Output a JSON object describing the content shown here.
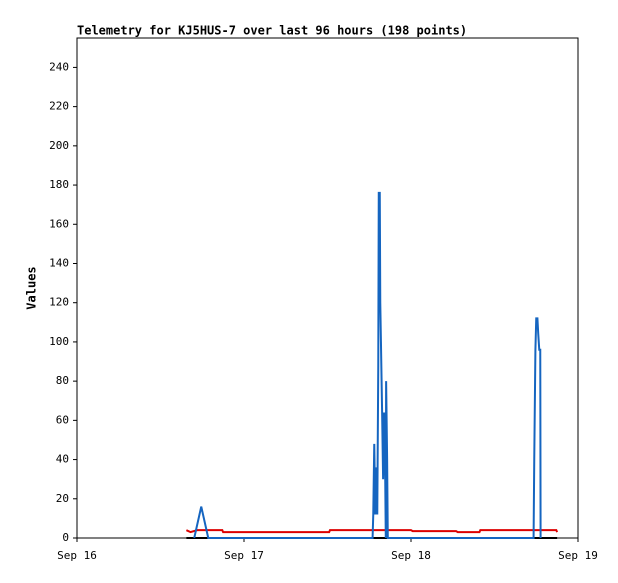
{
  "chart_data": {
    "type": "line",
    "title": "Telemetry for KJ5HUS-7 over last 96 hours (198 points)",
    "y_label": "Values",
    "xlim": [
      0,
      3
    ],
    "xticks": [
      {
        "value": 0,
        "label": "Sep 16"
      },
      {
        "value": 1,
        "label": "Sep 17"
      },
      {
        "value": 2,
        "label": "Sep 18"
      },
      {
        "value": 3,
        "label": "Sep 19"
      }
    ],
    "ylim": [
      0,
      255
    ],
    "yticks": [
      0,
      20,
      40,
      60,
      80,
      100,
      120,
      140,
      160,
      180,
      200,
      220,
      240
    ],
    "grid": false,
    "series": [
      {
        "color": "#000000",
        "x": [
          0.655,
          2.875
        ],
        "values": [
          0,
          0
        ]
      },
      {
        "color": "#dd0000",
        "x": [
          0.655,
          0.68,
          0.72,
          0.87,
          0.875,
          1.51,
          1.515,
          2.0,
          2.01,
          2.27,
          2.28,
          2.41,
          2.415,
          2.87,
          2.875
        ],
        "values": [
          4,
          3,
          4,
          4,
          3,
          3,
          4,
          4,
          3.5,
          3.5,
          3,
          3,
          4,
          4,
          3
        ]
      },
      {
        "color": "#1565c0",
        "x": [
          0.702,
          0.744,
          0.786,
          1.77,
          1.774,
          1.78,
          1.786,
          1.792,
          1.798,
          1.804,
          1.807,
          1.813,
          1.816,
          1.82,
          1.827,
          1.833,
          1.839,
          1.845,
          1.849,
          1.851,
          1.857,
          1.861,
          1.863,
          2.734,
          2.738,
          2.745,
          2.75,
          2.757,
          2.762,
          2.768,
          2.774,
          2.776
        ],
        "values": [
          0,
          16,
          0,
          0,
          12,
          48,
          12,
          36,
          12,
          88,
          176,
          176,
          120,
          100,
          64,
          30,
          64,
          36,
          0,
          80,
          40,
          0,
          0,
          0,
          40,
          96,
          112,
          112,
          104,
          96,
          96,
          0
        ]
      }
    ]
  }
}
